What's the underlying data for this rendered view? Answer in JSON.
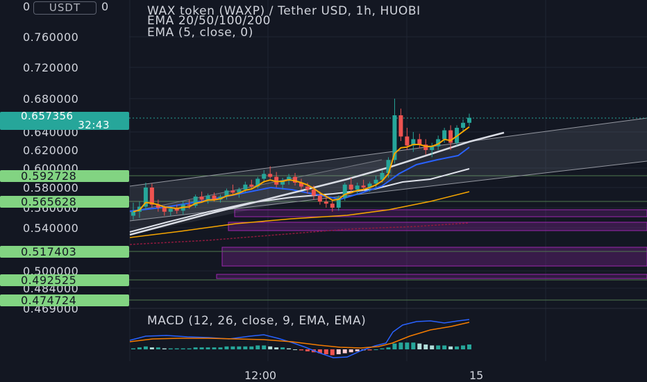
{
  "header": {
    "title": "WAX token (WAXP) / Tether USD, 1h, HUOBI",
    "indicator_ema": "EMA 20/50/100/200",
    "indicator_ema5": "EMA (5, close, 0)",
    "currency": "USDT",
    "currency_prefix": "0",
    "currency_suffix": "0"
  },
  "price_axis": {
    "ticks": [
      "0.760000",
      "0.720000",
      "0.680000",
      "0.640000",
      "0.620000",
      "0.600000",
      "0.580000",
      "0.560000",
      "0.540000",
      "0.500000",
      "0.484000",
      "0.469000"
    ]
  },
  "price_tags": {
    "current_price": "0.657356",
    "countdown": "32:43",
    "levels": [
      "0.592728",
      "0.565628",
      "0.517403",
      "0.492525",
      "0.474724"
    ]
  },
  "macd": {
    "label": "MACD (12, 26, close, 9, EMA, EMA)"
  },
  "time_axis": {
    "labels": [
      "12:00",
      "15"
    ]
  },
  "colors": {
    "background": "#131722",
    "up": "#26a69a",
    "down": "#ef5350",
    "level_tag": "#82d482",
    "zone": "#9c27b0"
  },
  "chart_data": {
    "type": "candlestick",
    "symbol": "WAXP/USDT",
    "interval": "1h",
    "exchange": "HUOBI",
    "ylim": [
      0.469,
      0.78
    ],
    "ohlc": [
      [
        0.552,
        0.565,
        0.548,
        0.556
      ],
      [
        0.556,
        0.566,
        0.55,
        0.561
      ],
      [
        0.561,
        0.585,
        0.558,
        0.58
      ],
      [
        0.58,
        0.584,
        0.56,
        0.563
      ],
      [
        0.563,
        0.568,
        0.556,
        0.56
      ],
      [
        0.56,
        0.562,
        0.552,
        0.556
      ],
      [
        0.556,
        0.561,
        0.552,
        0.559
      ],
      [
        0.559,
        0.563,
        0.554,
        0.557
      ],
      [
        0.557,
        0.566,
        0.553,
        0.563
      ],
      [
        0.563,
        0.568,
        0.559,
        0.562
      ],
      [
        0.562,
        0.573,
        0.56,
        0.571
      ],
      [
        0.571,
        0.576,
        0.565,
        0.568
      ],
      [
        0.568,
        0.574,
        0.564,
        0.572
      ],
      [
        0.572,
        0.575,
        0.566,
        0.568
      ],
      [
        0.568,
        0.573,
        0.565,
        0.571
      ],
      [
        0.571,
        0.579,
        0.568,
        0.577
      ],
      [
        0.577,
        0.583,
        0.572,
        0.575
      ],
      [
        0.575,
        0.58,
        0.57,
        0.578
      ],
      [
        0.578,
        0.586,
        0.575,
        0.583
      ],
      [
        0.583,
        0.588,
        0.578,
        0.581
      ],
      [
        0.581,
        0.591,
        0.579,
        0.589
      ],
      [
        0.589,
        0.598,
        0.585,
        0.594
      ],
      [
        0.594,
        0.602,
        0.589,
        0.591
      ],
      [
        0.591,
        0.596,
        0.58,
        0.583
      ],
      [
        0.583,
        0.59,
        0.578,
        0.587
      ],
      [
        0.587,
        0.594,
        0.583,
        0.591
      ],
      [
        0.591,
        0.595,
        0.582,
        0.585
      ],
      [
        0.585,
        0.589,
        0.578,
        0.581
      ],
      [
        0.581,
        0.585,
        0.574,
        0.578
      ],
      [
        0.578,
        0.582,
        0.568,
        0.572
      ],
      [
        0.572,
        0.576,
        0.563,
        0.566
      ],
      [
        0.566,
        0.572,
        0.56,
        0.564
      ],
      [
        0.564,
        0.568,
        0.556,
        0.56
      ],
      [
        0.56,
        0.572,
        0.557,
        0.57
      ],
      [
        0.57,
        0.585,
        0.567,
        0.583
      ],
      [
        0.583,
        0.59,
        0.575,
        0.578
      ],
      [
        0.578,
        0.585,
        0.574,
        0.582
      ],
      [
        0.582,
        0.588,
        0.577,
        0.58
      ],
      [
        0.58,
        0.586,
        0.576,
        0.584
      ],
      [
        0.584,
        0.592,
        0.58,
        0.588
      ],
      [
        0.588,
        0.598,
        0.585,
        0.595
      ],
      [
        0.595,
        0.612,
        0.59,
        0.609
      ],
      [
        0.609,
        0.68,
        0.605,
        0.66
      ],
      [
        0.66,
        0.668,
        0.63,
        0.635
      ],
      [
        0.635,
        0.645,
        0.62,
        0.625
      ],
      [
        0.625,
        0.64,
        0.618,
        0.632
      ],
      [
        0.632,
        0.638,
        0.622,
        0.626
      ],
      [
        0.626,
        0.632,
        0.615,
        0.62
      ],
      [
        0.62,
        0.628,
        0.612,
        0.624
      ],
      [
        0.624,
        0.636,
        0.62,
        0.632
      ],
      [
        0.632,
        0.645,
        0.628,
        0.642
      ],
      [
        0.642,
        0.648,
        0.62,
        0.628
      ],
      [
        0.628,
        0.648,
        0.625,
        0.645
      ],
      [
        0.645,
        0.655,
        0.64,
        0.651
      ],
      [
        0.651,
        0.662,
        0.647,
        0.657
      ]
    ],
    "macd": [
      0.001,
      0.002,
      0.003,
      0.002,
      0.002,
      0.001,
      0.001,
      0.001,
      0.001,
      0.001,
      0.002,
      0.002,
      0.002,
      0.002,
      0.002,
      0.003,
      0.003,
      0.003,
      0.003,
      0.003,
      0.004,
      0.004,
      0.003,
      0.002,
      0.002,
      0.001,
      0,
      -0.001,
      -0.002,
      -0.003,
      -0.004,
      -0.005,
      -0.006,
      -0.005,
      -0.004,
      -0.003,
      -0.002,
      -0.001,
      -0.001,
      0,
      0.001,
      0.002,
      0.006,
      0.007,
      0.007,
      0.007,
      0.006,
      0.005,
      0.004,
      0.004,
      0.004,
      0.003,
      0.003,
      0.004,
      0.005
    ]
  }
}
